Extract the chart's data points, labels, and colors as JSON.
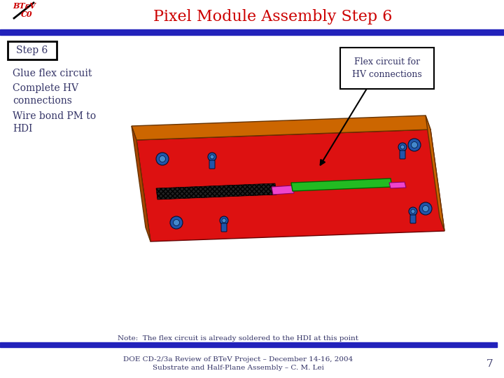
{
  "title": "Pixel Module Assembly Step 6",
  "title_color": "#cc0000",
  "title_fontsize": 16,
  "step_label": "Step 6",
  "bullet1": "Glue flex circuit",
  "bullet2": "Complete HV\nconnections",
  "bullet3": "Wire bond PM to\nHDI",
  "callout_text": "Flex circuit for\nHV connections",
  "note_text": "Note:  The flex circuit is already soldered to the HDI at this point",
  "footer_line1": "DOE CD-2/3a Review of BTeV Project – December 14-16, 2004",
  "footer_line2": "Substrate and Half-Plane Assembly – C. M. Lei",
  "page_number": "7",
  "header_bar_color": "#2222bb",
  "footer_bar_color": "#2222bb",
  "background_color": "#ffffff",
  "text_color": "#333366",
  "logo_btev_color": "#cc0000",
  "logo_co_color": "#cc0000",
  "red_top": "#dd1111",
  "orange_side": "#cc6600",
  "dark_orange_side": "#aa4400",
  "screw_color": "#2255aa",
  "screw_inner": "#4488cc",
  "green_flex": "#22bb22",
  "pink_comp": "#ee44cc",
  "dark_hatch": "#333333"
}
